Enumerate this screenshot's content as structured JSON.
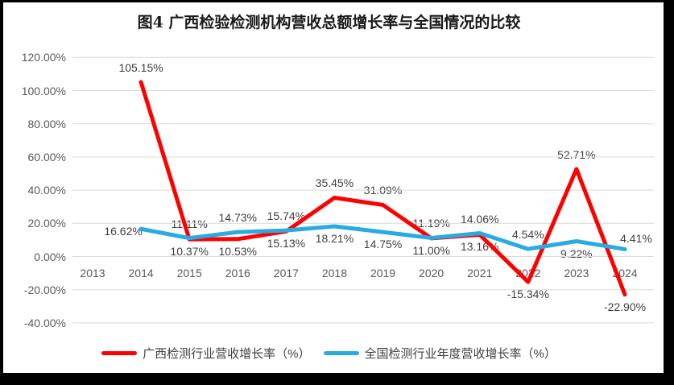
{
  "title": "图4 广西检验检测机构营收总额增长率与全国情况的比较",
  "colors": {
    "background": "#FFFFFF",
    "border": "#000000",
    "grid": "#D9D9D9",
    "axis_text": "#595959",
    "data_label_text": "#404040",
    "title_text": "#1A1A1A",
    "guangxi_red": "#FF0000",
    "national_blue": "#29ABE2"
  },
  "chart_data": {
    "type": "line",
    "title": "图4 广西检验检测机构营收总额增长率与全国情况的比较",
    "categories": [
      "2013",
      "2014",
      "2015",
      "2016",
      "2017",
      "2018",
      "2019",
      "2020",
      "2021",
      "2022",
      "2023",
      "2024"
    ],
    "series": [
      {
        "name": "广西检测行业营收增长率（%）",
        "color": "#FF0000",
        "values": [
          null,
          105.15,
          10.37,
          10.53,
          15.13,
          35.45,
          31.09,
          11.0,
          13.16,
          -15.34,
          52.71,
          -22.9
        ],
        "labels": [
          "",
          "105.15%",
          "10.37%",
          "10.53%",
          "15.13%",
          "35.45%",
          "31.09%",
          "11.00%",
          "13.16%",
          "-15.34%",
          "52.71%",
          "-22.90%"
        ],
        "label_pos": [
          "",
          "above",
          "below",
          "below",
          "below",
          "above",
          "above",
          "below",
          "below",
          "below",
          "above",
          "below"
        ]
      },
      {
        "name": "全国检测行业年度营收增长率（%）",
        "color": "#29ABE2",
        "values": [
          null,
          16.62,
          11.11,
          14.73,
          15.74,
          18.21,
          14.75,
          11.19,
          14.06,
          4.54,
          9.22,
          4.41
        ],
        "labels": [
          "",
          "16.62%",
          "11.11%",
          "14.73%",
          "15.74%",
          "18.21%",
          "14.75%",
          "11.19%",
          "14.06%",
          "4.54%",
          "9.22%",
          "4.41%"
        ],
        "label_pos": [
          "",
          "left",
          "above",
          "above",
          "above",
          "below",
          "below",
          "above",
          "above",
          "above",
          "below",
          "above-right"
        ]
      }
    ],
    "xlabel": "",
    "ylabel": "",
    "ylim": [
      -40,
      120
    ],
    "ytick_step": 20,
    "yticks": [
      {
        "v": 120,
        "label": "120.00%"
      },
      {
        "v": 100,
        "label": "100.00%"
      },
      {
        "v": 80,
        "label": "80.00%"
      },
      {
        "v": 60,
        "label": "60.00%"
      },
      {
        "v": 40,
        "label": "40.00%"
      },
      {
        "v": 20,
        "label": "20.00%"
      },
      {
        "v": 0,
        "label": "0.00%"
      },
      {
        "v": -20,
        "label": "-20.00%"
      },
      {
        "v": -40,
        "label": "-40.00%"
      }
    ],
    "grid": true,
    "legend_position": "bottom"
  }
}
